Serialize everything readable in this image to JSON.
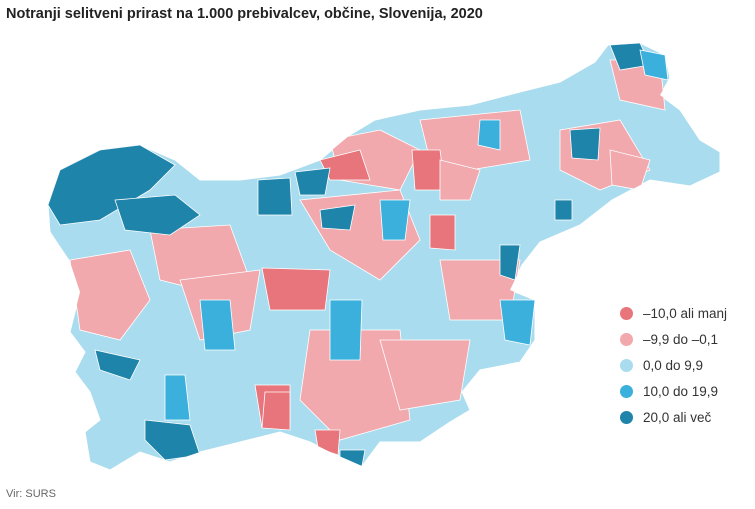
{
  "title": "Notranji selitveni prirast na 1.000 prebivalcev, občine, Slovenija, 2020",
  "legend": [
    {
      "label": "–10,0 ali manj",
      "color": "#e8757b"
    },
    {
      "label": "–9,9 do –0,1",
      "color": "#f1a9ad"
    },
    {
      "label": "0,0 do 9,9",
      "color": "#a9dcee"
    },
    {
      "label": "10,0 do 19,9",
      "color": "#3bb0dc"
    },
    {
      "label": "20,0 ali več",
      "color": "#1f84aa"
    }
  ],
  "source": "Vir: SURS"
}
